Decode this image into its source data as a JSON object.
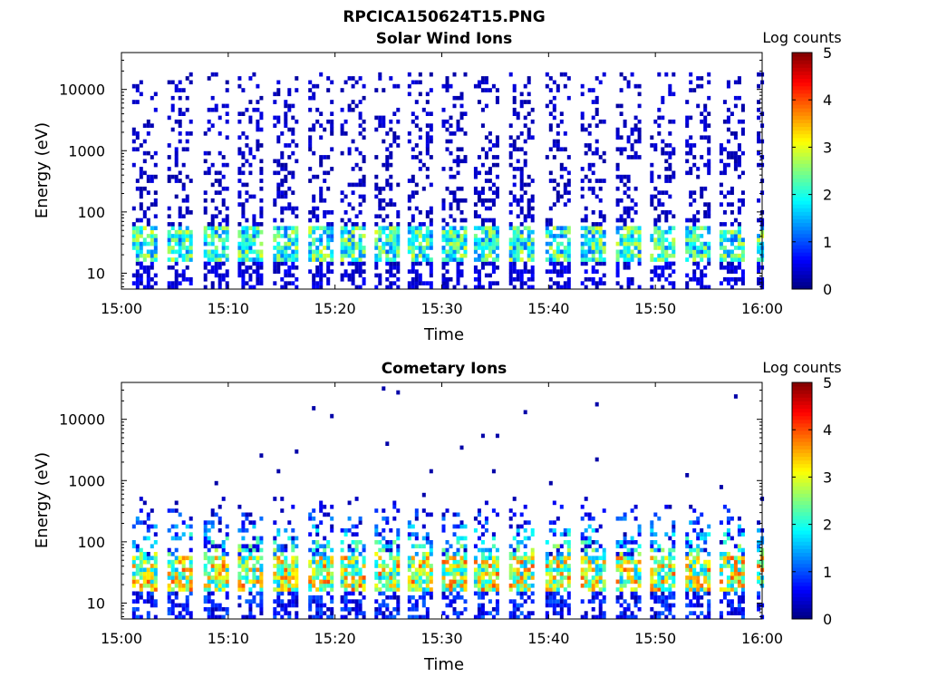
{
  "figure": {
    "title": "RPCICA150624T15.PNG"
  },
  "colors": {
    "background": "#ffffff",
    "axis": "#000000",
    "colormap": "jet",
    "colormap_stops": [
      "#00007f",
      "#0000ff",
      "#007fff",
      "#00ffff",
      "#7fff7f",
      "#ffff00",
      "#ff7f00",
      "#ff0000",
      "#7f0000"
    ]
  },
  "chart_data": [
    {
      "type": "heatmap",
      "title": "Solar Wind Ions",
      "xlabel": "Time",
      "ylabel": "Energy (eV)",
      "yscale": "log",
      "xlim": [
        "15:00",
        "16:00"
      ],
      "x_ticks": [
        "15:00",
        "15:10",
        "15:20",
        "15:30",
        "15:40",
        "15:50",
        "16:00"
      ],
      "ylim": [
        5.5,
        40000
      ],
      "y_ticks": [
        10,
        100,
        1000,
        10000
      ],
      "y_tick_labels": [
        "10",
        "100",
        "1000",
        "10000"
      ],
      "colorbar": {
        "label": "Log counts",
        "range": [
          0,
          5
        ],
        "ticks": [
          "0",
          "1",
          "2",
          "3",
          "4",
          "5"
        ]
      },
      "grid": false,
      "sweep_count": 19,
      "sweep_start_minutes": [
        1,
        4.3,
        7.7,
        10.9,
        14.2,
        17.5,
        20.5,
        23.7,
        26.8,
        30,
        33,
        36.3,
        39.7,
        43,
        46.3,
        49.5,
        52.8,
        56,
        59.5
      ],
      "features": {
        "core_energy_eV": [
          15,
          60
        ],
        "core_peak_log_counts": 3,
        "sparse_extent_eV": 20000
      }
    },
    {
      "type": "heatmap",
      "title": "Cometary Ions",
      "xlabel": "Time",
      "ylabel": "Energy (eV)",
      "yscale": "log",
      "xlim": [
        "15:00",
        "16:00"
      ],
      "x_ticks": [
        "15:00",
        "15:10",
        "15:20",
        "15:30",
        "15:40",
        "15:50",
        "16:00"
      ],
      "ylim": [
        5.5,
        40000
      ],
      "y_ticks": [
        10,
        100,
        1000,
        10000
      ],
      "y_tick_labels": [
        "10",
        "100",
        "1000",
        "10000"
      ],
      "colorbar": {
        "label": "Log counts",
        "range": [
          0,
          5
        ],
        "ticks": [
          "0",
          "1",
          "2",
          "3",
          "4",
          "5"
        ]
      },
      "grid": false,
      "sweep_count": 19,
      "sweep_start_minutes": [
        1,
        4.3,
        7.7,
        10.9,
        14.2,
        17.5,
        20.5,
        23.7,
        26.8,
        30,
        33,
        36.3,
        39.7,
        43,
        46.3,
        49.5,
        52.8,
        56,
        59.5
      ],
      "features": {
        "core_energy_eV": [
          15,
          60
        ],
        "core_peak_log_counts": 4,
        "extent_eV": 600
      }
    }
  ]
}
